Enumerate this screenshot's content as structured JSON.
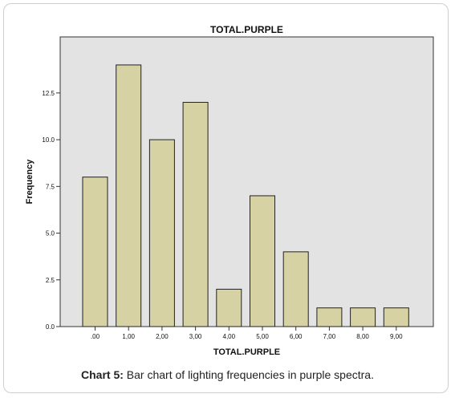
{
  "chart_data": {
    "type": "bar",
    "title": "TOTAL.PURPLE",
    "xlabel": "TOTAL.PURPLE",
    "ylabel": "Frequency",
    "categories": [
      ".00",
      "1,00",
      "2,00",
      "3,00",
      "4,00",
      "5,00",
      "6,00",
      "7,00",
      "8,00",
      "9,00"
    ],
    "values": [
      8,
      14,
      10,
      12,
      2,
      7,
      4,
      1,
      1,
      1
    ],
    "ylim": [
      0,
      15.5
    ],
    "yticks": [
      0,
      2.5,
      5,
      7.5,
      10,
      12.5
    ],
    "ytick_labels": [
      "0.0",
      "2.5",
      "5.0",
      "7.5",
      "10.0",
      "12.5"
    ],
    "grid": false,
    "colors": {
      "plot_background": "#e3e3e3",
      "bar_fill": "#d6d2a4",
      "bar_stroke": "#222222"
    }
  },
  "caption": {
    "label": "Chart 5:",
    "text": " Bar chart of lighting frequencies in purple spectra."
  }
}
